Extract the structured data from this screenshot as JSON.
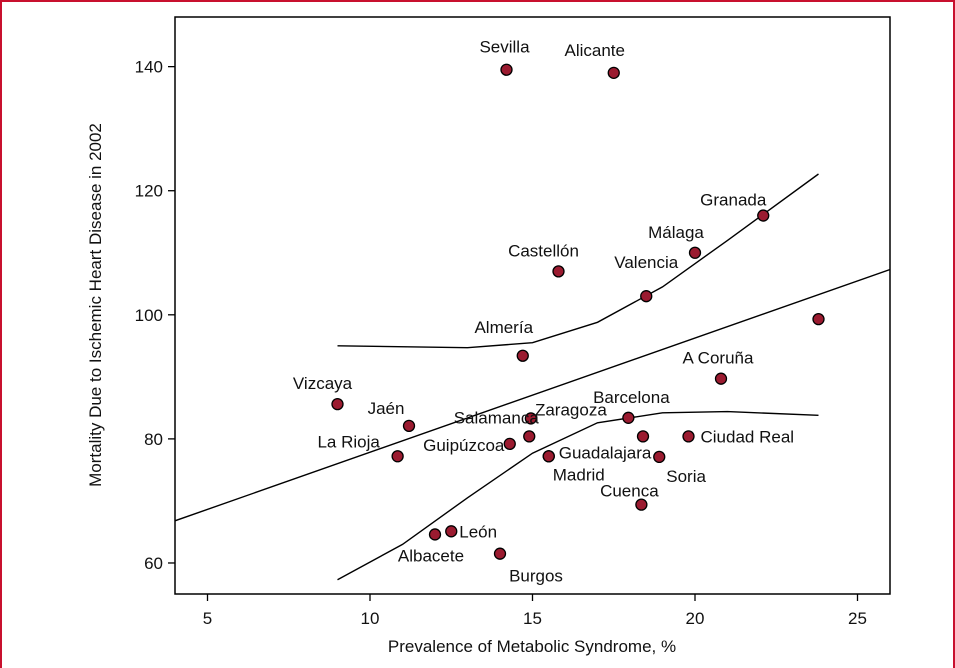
{
  "chart_data": {
    "type": "scatter",
    "xlabel": "Prevalence of Metabolic Syndrome, %",
    "ylabel": "Mortality Due to Ischemic Heart Disease in 2002",
    "xlim": [
      4,
      26
    ],
    "ylim": [
      55,
      148
    ],
    "xticks": [
      5,
      10,
      15,
      20,
      25
    ],
    "yticks": [
      60,
      80,
      100,
      120,
      140
    ],
    "grid": false,
    "colors": {
      "point_fill": "#9b1b30",
      "frame": "#c8102e",
      "line": "#000000"
    },
    "points": [
      {
        "label": "Sevilla",
        "x": 14.2,
        "y": 139.5
      },
      {
        "label": "Alicante",
        "x": 17.5,
        "y": 139
      },
      {
        "label": "Granada",
        "x": 22.1,
        "y": 116
      },
      {
        "label": "Málaga",
        "x": 20.0,
        "y": 110
      },
      {
        "label": "Castellón",
        "x": 15.8,
        "y": 107
      },
      {
        "label": "Valencia",
        "x": 18.5,
        "y": 103
      },
      {
        "label": "",
        "x": 23.8,
        "y": 99.3
      },
      {
        "label": "Almería",
        "x": 14.7,
        "y": 93.4
      },
      {
        "label": "A Coruña",
        "x": 20.8,
        "y": 89.7
      },
      {
        "label": "Vizcaya",
        "x": 9.0,
        "y": 85.6
      },
      {
        "label": "Zaragoza",
        "x": 14.95,
        "y": 83.3
      },
      {
        "label": "Barcelona",
        "x": 17.95,
        "y": 83.4
      },
      {
        "label": "Jaén",
        "x": 11.2,
        "y": 82.1
      },
      {
        "label": "Salamanca",
        "x": 14.9,
        "y": 80.4
      },
      {
        "label": "",
        "x": 18.4,
        "y": 80.4
      },
      {
        "label": "Ciudad Real",
        "x": 19.8,
        "y": 80.4
      },
      {
        "label": "Guipúzcoa",
        "x": 14.3,
        "y": 79.2
      },
      {
        "label": "La Rioja",
        "x": 10.85,
        "y": 77.2
      },
      {
        "label": "Guadalajara",
        "x": 15.5,
        "y": 77.2
      },
      {
        "label": "Madrid",
        "x": 15.5,
        "y": 77.2
      },
      {
        "label": "Soria",
        "x": 18.9,
        "y": 77.1
      },
      {
        "label": "Cuenca",
        "x": 18.35,
        "y": 69.4
      },
      {
        "label": "León",
        "x": 12.5,
        "y": 65.1
      },
      {
        "label": "Albacete",
        "x": 12.0,
        "y": 64.6
      },
      {
        "label": "Burgos",
        "x": 14.0,
        "y": 61.5
      }
    ],
    "regression_line": [
      [
        4,
        66.8
      ],
      [
        26,
        107.3
      ]
    ],
    "upper_band": [
      [
        9.0,
        95.0
      ],
      [
        13.0,
        94.7
      ],
      [
        15.0,
        95.5
      ],
      [
        17.0,
        98.8
      ],
      [
        19.0,
        104.5
      ],
      [
        21.0,
        112.0
      ],
      [
        23.8,
        122.7
      ]
    ],
    "lower_band": [
      [
        9.0,
        57.3
      ],
      [
        11.0,
        63.0
      ],
      [
        13.0,
        70.5
      ],
      [
        15.0,
        77.7
      ],
      [
        17.0,
        82.6
      ],
      [
        19.0,
        84.2
      ],
      [
        21.0,
        84.4
      ],
      [
        23.8,
        83.8
      ]
    ]
  }
}
